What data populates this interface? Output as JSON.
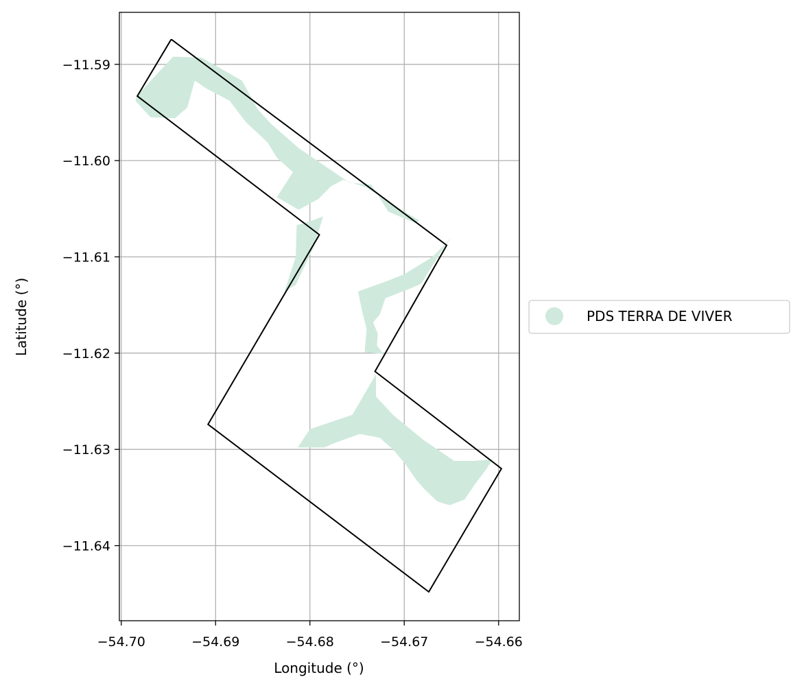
{
  "chart_data": {
    "type": "map",
    "xlabel": "Longitude (°)",
    "ylabel": "Latitude (°)",
    "xlim": [
      -54.7002,
      -54.6578
    ],
    "ylim": [
      -11.6478,
      -11.5846
    ],
    "xticks": [
      -54.7,
      -54.69,
      -54.68,
      -54.67,
      -54.66
    ],
    "xtick_labels": [
      "−54.70",
      "−54.69",
      "−54.68",
      "−54.67",
      "−54.66"
    ],
    "yticks": [
      -11.59,
      -11.6,
      -11.61,
      -11.62,
      -11.63,
      -11.64
    ],
    "ytick_labels": [
      "−11.59",
      "−11.60",
      "−11.61",
      "−11.62",
      "−11.63",
      "−11.64"
    ],
    "grid": true,
    "legend": {
      "placement": "right",
      "entries": [
        {
          "label": "PDS TERRA DE VIVER",
          "color": "#cfeadd"
        }
      ]
    },
    "boundary": {
      "color": "#000000",
      "lonlat": [
        [
          -54.6947,
          -11.5874
        ],
        [
          -54.6655,
          -11.6088
        ],
        [
          -54.6731,
          -11.6219
        ],
        [
          -54.6597,
          -11.632
        ],
        [
          -54.6674,
          -11.6448
        ],
        [
          -54.6908,
          -11.6274
        ],
        [
          -54.679,
          -11.6077
        ],
        [
          -54.6983,
          -11.5933
        ],
        [
          -54.6947,
          -11.5874
        ]
      ]
    },
    "fill_color": "#cfeadd",
    "regions": [
      [
        [
          -54.6983,
          -11.5932
        ],
        [
          -54.6945,
          -11.5892
        ],
        [
          -54.6915,
          -11.5893
        ],
        [
          -54.6872,
          -11.5917
        ],
        [
          -54.6855,
          -11.5947
        ],
        [
          -54.6841,
          -11.5962
        ],
        [
          -54.6812,
          -11.5987
        ],
        [
          -54.6758,
          -11.6023
        ],
        [
          -54.6735,
          -11.6025
        ],
        [
          -54.6717,
          -11.6053
        ],
        [
          -54.6688,
          -11.6065
        ],
        [
          -54.6684,
          -11.6062
        ],
        [
          -54.6717,
          -11.6043
        ],
        [
          -54.674,
          -11.6028
        ],
        [
          -54.6765,
          -11.602
        ],
        [
          -54.6778,
          -11.6027
        ],
        [
          -54.6791,
          -11.604
        ],
        [
          -54.6812,
          -11.6051
        ],
        [
          -54.6835,
          -11.6038
        ],
        [
          -54.6818,
          -11.6012
        ],
        [
          -54.6835,
          -11.5997
        ],
        [
          -54.6845,
          -11.5981
        ],
        [
          -54.6868,
          -11.596
        ],
        [
          -54.6885,
          -11.5938
        ],
        [
          -54.691,
          -11.5925
        ],
        [
          -54.6922,
          -11.5917
        ],
        [
          -54.693,
          -11.5945
        ],
        [
          -54.6943,
          -11.5956
        ],
        [
          -54.6969,
          -11.5955
        ],
        [
          -54.6985,
          -11.5938
        ]
      ],
      [
        [
          -54.6814,
          -11.6067
        ],
        [
          -54.68,
          -11.6063
        ],
        [
          -54.6786,
          -11.6058
        ],
        [
          -54.6796,
          -11.609
        ],
        [
          -54.6815,
          -11.6129
        ],
        [
          -54.6827,
          -11.6136
        ],
        [
          -54.6815,
          -11.61
        ]
      ],
      [
        [
          -54.665,
          -11.608
        ],
        [
          -54.666,
          -11.6093
        ],
        [
          -54.6682,
          -11.6128
        ],
        [
          -54.6694,
          -11.6133
        ],
        [
          -54.672,
          -11.6143
        ],
        [
          -54.6726,
          -11.616
        ],
        [
          -54.6733,
          -11.6168
        ],
        [
          -54.6728,
          -11.618
        ],
        [
          -54.6729,
          -11.6192
        ],
        [
          -54.6722,
          -11.6201
        ],
        [
          -54.6742,
          -11.6199
        ],
        [
          -54.674,
          -11.6175
        ],
        [
          -54.6745,
          -11.6155
        ],
        [
          -54.6749,
          -11.6136
        ],
        [
          -54.6718,
          -11.6125
        ],
        [
          -54.67,
          -11.6118
        ],
        [
          -54.667,
          -11.61
        ]
      ],
      [
        [
          -54.673,
          -11.6222
        ],
        [
          -54.6755,
          -11.6264
        ],
        [
          -54.68,
          -11.6279
        ],
        [
          -54.6813,
          -11.6298
        ],
        [
          -54.6785,
          -11.6298
        ],
        [
          -54.677,
          -11.6292
        ],
        [
          -54.6747,
          -11.6284
        ],
        [
          -54.6726,
          -11.6288
        ],
        [
          -54.6712,
          -11.63
        ],
        [
          -54.6699,
          -11.6315
        ],
        [
          -54.6687,
          -11.6332
        ],
        [
          -54.6678,
          -11.6342
        ],
        [
          -54.6665,
          -11.6354
        ],
        [
          -54.6652,
          -11.6358
        ],
        [
          -54.6636,
          -11.6352
        ],
        [
          -54.6625,
          -11.6336
        ],
        [
          -54.6614,
          -11.6322
        ],
        [
          -54.6606,
          -11.631
        ],
        [
          -54.6626,
          -11.6312
        ],
        [
          -54.6647,
          -11.6312
        ],
        [
          -54.668,
          -11.629
        ],
        [
          -54.6712,
          -11.6264
        ],
        [
          -54.673,
          -11.6245
        ]
      ]
    ]
  }
}
